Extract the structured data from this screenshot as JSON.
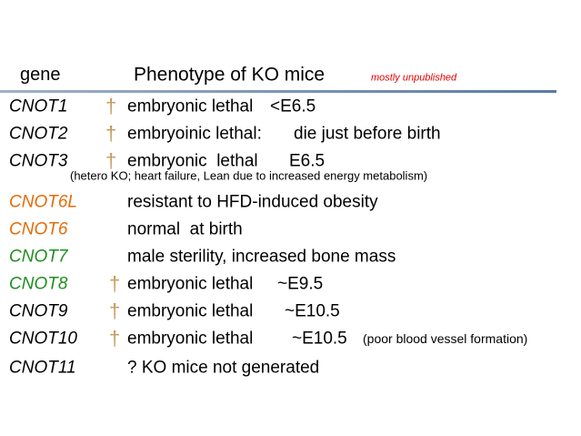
{
  "header": {
    "gene": "gene",
    "title": "Phenotype of KO mice",
    "note": "mostly unpublished"
  },
  "rows": [
    {
      "gene": "CNOT1",
      "color": "#000000",
      "mark": "†",
      "phenotype": "embryonic lethal",
      "stage": "<E6.5"
    },
    {
      "gene": "CNOT2",
      "color": "#000000",
      "mark": "†",
      "phenotype": "embryoinic lethal:",
      "stage": "die just before birth"
    },
    {
      "gene": "CNOT3",
      "color": "#000000",
      "mark": "†",
      "phenotype": "embryonic  lethal",
      "stage": "E6.5",
      "detail": "(hetero KO; heart failure, Lean due to increased energy metabolism)"
    },
    {
      "gene": "CNOT6L",
      "color": "#e36c0a",
      "phenotype": "resistant to HFD-induced obesity"
    },
    {
      "gene": "CNOT6",
      "color": "#e36c0a",
      "phenotype": "normal  at birth"
    },
    {
      "gene": "CNOT7",
      "color": "#1f8f1f",
      "phenotype": "male sterility, increased bone mass"
    },
    {
      "gene": "CNOT8",
      "color": "#1f8f1f",
      "mark": "†",
      "phenotype": "embryonic lethal",
      "stage": "~E9.5"
    },
    {
      "gene": "CNOT9",
      "color": "#000000",
      "mark": "†",
      "phenotype": "embryonic lethal",
      "stage": "~E10.5"
    },
    {
      "gene": "CNOT10",
      "color": "#000000",
      "mark": "†",
      "phenotype": "embryonic lethal",
      "stage": "~E10.5",
      "note": "(poor blood vessel formation)"
    },
    {
      "gene": "CNOT11",
      "color": "#000000",
      "phenotype": "? KO mice not generated"
    }
  ]
}
